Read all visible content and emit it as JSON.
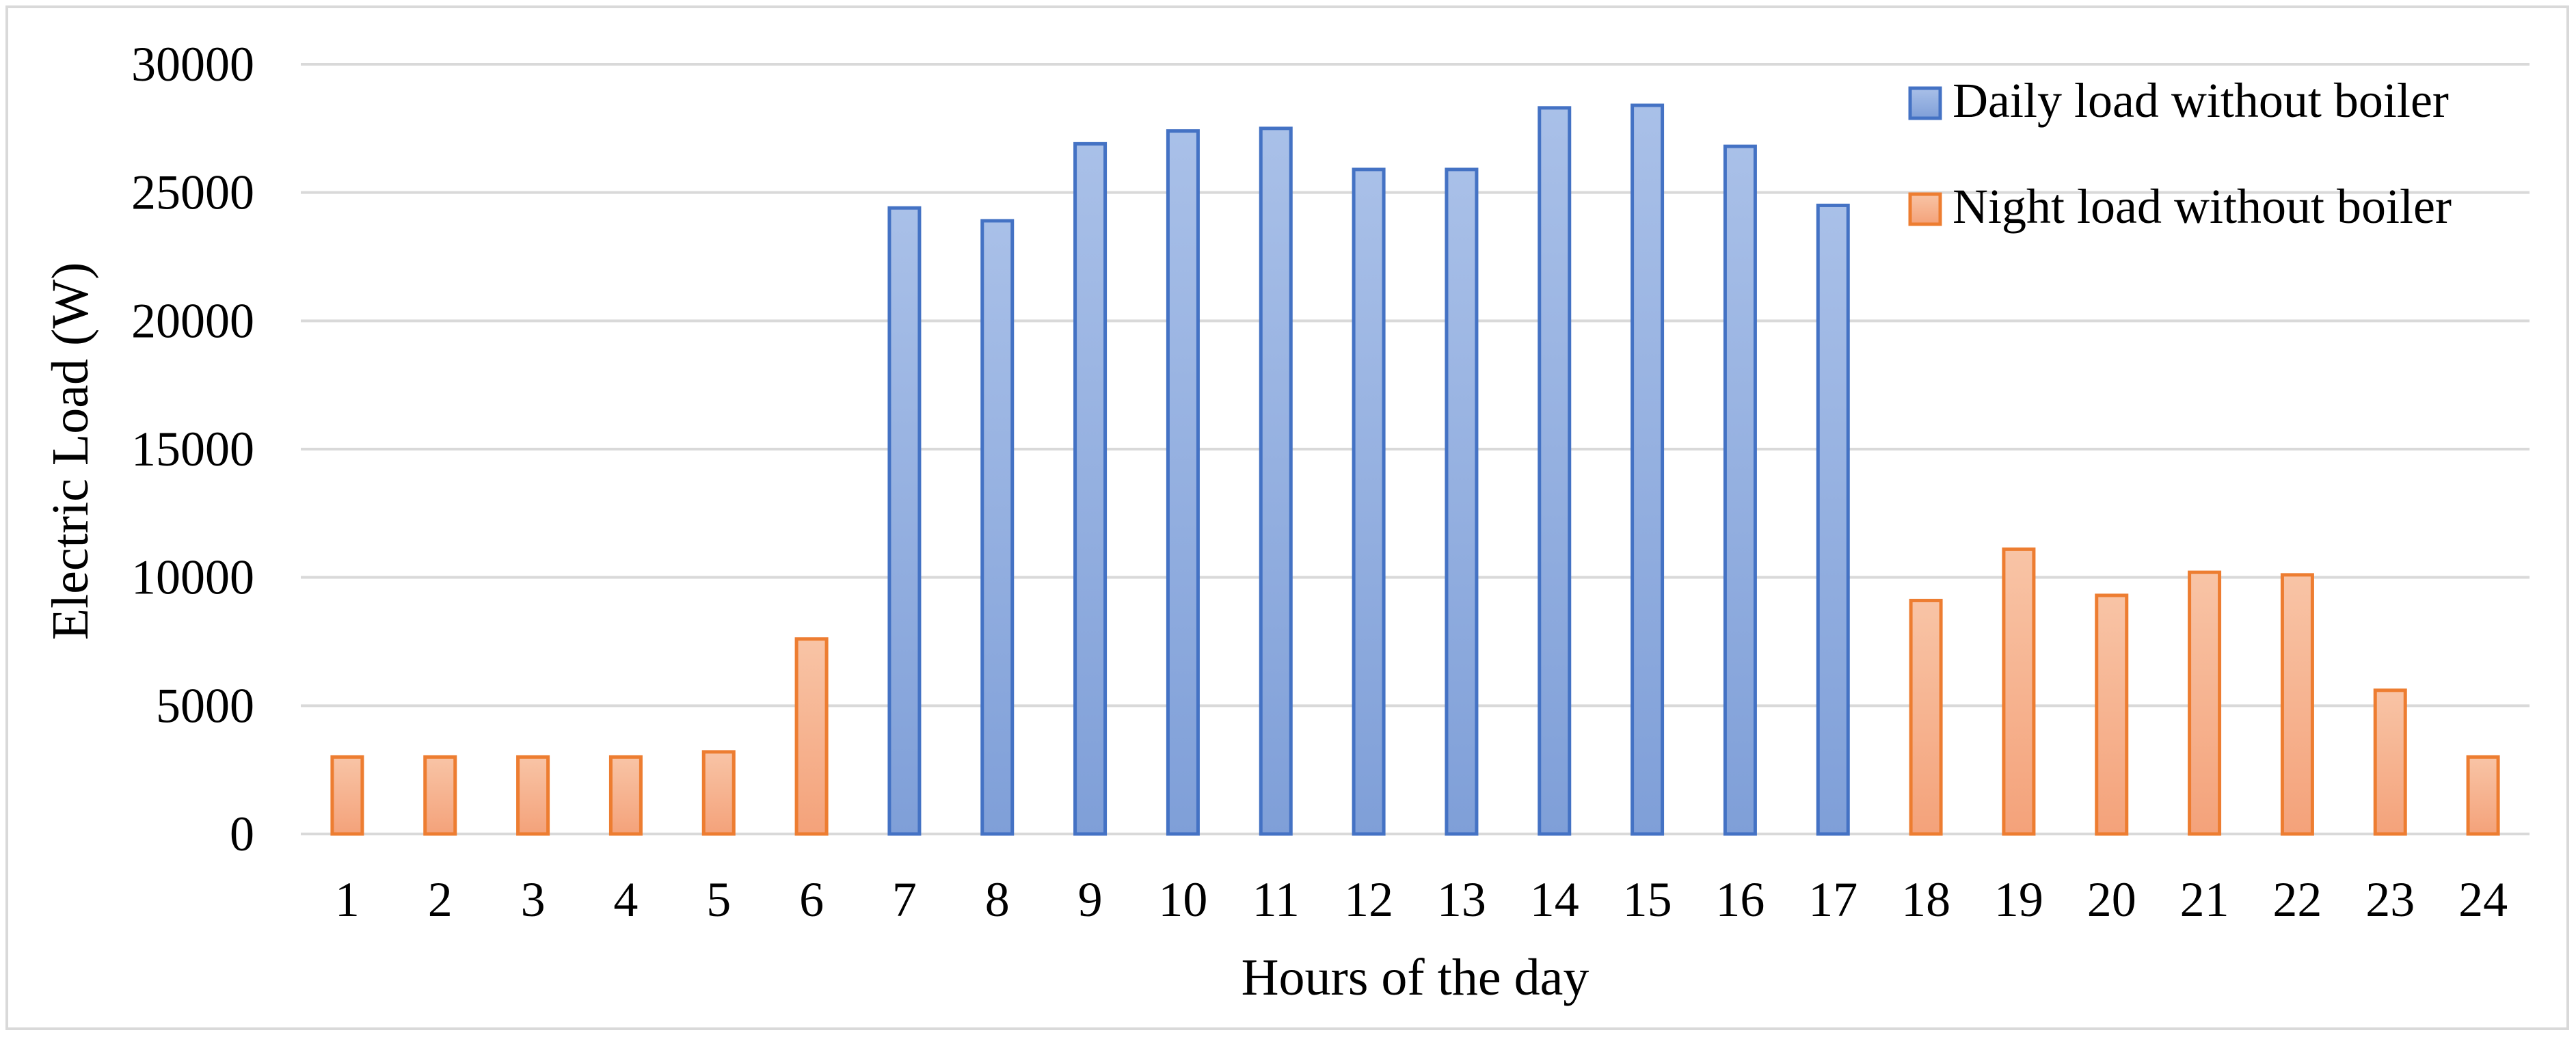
{
  "chart_data": {
    "type": "bar",
    "title": "",
    "xlabel": "Hours of the day",
    "ylabel": "Electric Load (W)",
    "ylim": [
      0,
      30000
    ],
    "yticks": [
      0,
      5000,
      10000,
      15000,
      20000,
      25000,
      30000
    ],
    "grid": true,
    "legend_position": "top-right",
    "categories": [
      "1",
      "2",
      "3",
      "4",
      "5",
      "6",
      "7",
      "8",
      "9",
      "10",
      "11",
      "12",
      "13",
      "14",
      "15",
      "16",
      "17",
      "18",
      "19",
      "20",
      "21",
      "22",
      "23",
      "24"
    ],
    "series": [
      {
        "name": "Daily load without boiler",
        "color": "#4472c4",
        "fill_light": "#a9c0e8",
        "fill_dark": "#7f9fd8",
        "values": [
          null,
          null,
          null,
          null,
          null,
          null,
          24400,
          23900,
          26900,
          27400,
          27500,
          25900,
          25900,
          28300,
          28400,
          26800,
          24500,
          null,
          null,
          null,
          null,
          null,
          null,
          null
        ]
      },
      {
        "name": "Night load without boiler",
        "color": "#ed7d31",
        "fill_light": "#f8c4a6",
        "fill_dark": "#f4a27a",
        "values": [
          3000,
          3000,
          3000,
          3000,
          3200,
          7600,
          null,
          null,
          null,
          null,
          null,
          null,
          null,
          null,
          null,
          null,
          null,
          9100,
          11100,
          9300,
          10200,
          10100,
          5600,
          3000
        ]
      }
    ]
  }
}
